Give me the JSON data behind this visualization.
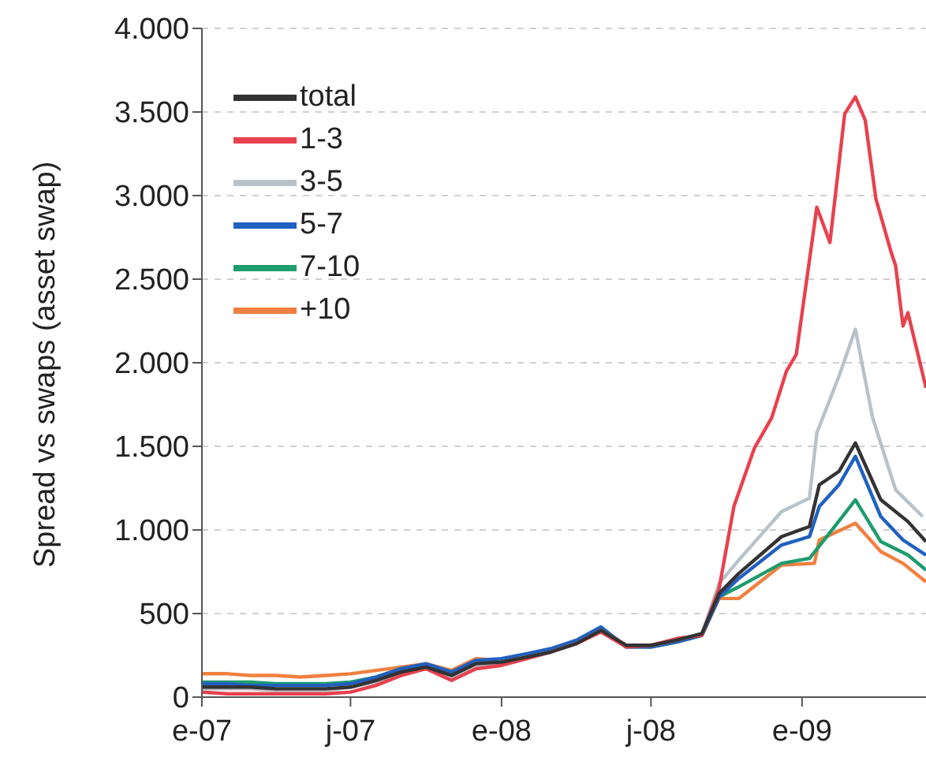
{
  "chart_data": {
    "type": "line",
    "ylabel": "Spread vs swaps (asset swap)",
    "xlim": [
      "2007-01-01",
      "2009-06-01"
    ],
    "xticks": [
      {
        "value": "2007-01-01",
        "label": "e-07"
      },
      {
        "value": "2007-07-01",
        "label": "j-07"
      },
      {
        "value": "2008-01-01",
        "label": "e-08"
      },
      {
        "value": "2008-07-01",
        "label": "j-08"
      },
      {
        "value": "2009-01-01",
        "label": "e-09"
      }
    ],
    "ylim": [
      0,
      4000
    ],
    "yticks": [
      {
        "value": 0,
        "label": "0"
      },
      {
        "value": 500,
        "label": "500"
      },
      {
        "value": 1000,
        "label": "1.000"
      },
      {
        "value": 1500,
        "label": "1.500"
      },
      {
        "value": 2000,
        "label": "2.000"
      },
      {
        "value": 2500,
        "label": "2.500"
      },
      {
        "value": 3000,
        "label": "3.000"
      },
      {
        "value": 3500,
        "label": "3.500"
      },
      {
        "value": 4000,
        "label": "4.000"
      }
    ],
    "grid": "y",
    "legend": "top left",
    "marker": "none",
    "line_style": "solid",
    "series": [
      {
        "name": "+10",
        "color": "#f08040",
        "x": [
          "2007-01-01",
          "2007-02-01",
          "2007-03-01",
          "2007-04-01",
          "2007-05-01",
          "2007-06-01",
          "2007-07-01",
          "2007-08-01",
          "2007-09-01",
          "2007-10-01",
          "2007-11-01",
          "2007-12-01",
          "2008-01-01",
          "2008-02-01",
          "2008-03-01",
          "2008-04-01",
          "2008-05-01",
          "2008-06-01",
          "2008-07-01",
          "2008-08-01",
          "2008-09-01",
          "2008-09-22",
          "2008-10-16",
          "2008-12-07",
          "2009-01-16",
          "2009-01-22",
          "2009-03-07",
          "2009-04-07",
          "2009-05-04",
          "2009-06-01"
        ],
        "values": [
          140,
          140,
          130,
          130,
          120,
          130,
          140,
          160,
          180,
          200,
          160,
          230,
          220,
          250,
          280,
          330,
          410,
          310,
          300,
          330,
          370,
          590,
          590,
          790,
          800,
          940,
          1040,
          870,
          800,
          690
        ]
      },
      {
        "name": "7-10",
        "color": "#1e9c6e",
        "x": [
          "2007-01-01",
          "2007-02-01",
          "2007-03-01",
          "2007-04-01",
          "2007-05-01",
          "2007-06-01",
          "2007-07-01",
          "2007-08-01",
          "2007-09-01",
          "2007-10-01",
          "2007-11-01",
          "2007-12-01",
          "2008-01-01",
          "2008-02-01",
          "2008-03-01",
          "2008-04-01",
          "2008-05-01",
          "2008-06-01",
          "2008-07-01",
          "2008-08-01",
          "2008-09-01",
          "2008-09-22",
          "2008-10-16",
          "2008-12-07",
          "2009-01-10",
          "2009-01-28",
          "2009-03-07",
          "2009-04-07",
          "2009-05-10",
          "2009-06-01"
        ],
        "values": [
          90,
          90,
          90,
          80,
          80,
          80,
          90,
          120,
          170,
          190,
          150,
          210,
          210,
          250,
          280,
          320,
          400,
          300,
          300,
          330,
          370,
          600,
          660,
          800,
          830,
          940,
          1180,
          930,
          850,
          760
        ]
      },
      {
        "name": "5-7",
        "color": "#2060c0",
        "x": [
          "2007-01-01",
          "2007-02-01",
          "2007-03-01",
          "2007-04-01",
          "2007-05-01",
          "2007-06-01",
          "2007-07-01",
          "2007-08-01",
          "2007-09-01",
          "2007-10-01",
          "2007-11-01",
          "2007-12-01",
          "2008-01-01",
          "2008-02-01",
          "2008-03-01",
          "2008-04-01",
          "2008-05-01",
          "2008-06-01",
          "2008-07-01",
          "2008-08-01",
          "2008-09-01",
          "2008-09-22",
          "2008-10-16",
          "2008-12-07",
          "2009-01-10",
          "2009-01-22",
          "2009-02-15",
          "2009-03-07",
          "2009-04-07",
          "2009-05-04",
          "2009-06-01"
        ],
        "values": [
          80,
          80,
          70,
          70,
          70,
          70,
          80,
          120,
          170,
          200,
          150,
          220,
          230,
          260,
          290,
          340,
          420,
          300,
          300,
          330,
          370,
          600,
          710,
          910,
          960,
          1140,
          1270,
          1440,
          1080,
          940,
          850
        ]
      },
      {
        "name": "3-5",
        "color": "#b8c2c8",
        "x": [
          "2007-01-01",
          "2007-02-01",
          "2007-03-01",
          "2007-04-01",
          "2007-05-01",
          "2007-06-01",
          "2007-07-01",
          "2007-08-01",
          "2007-09-01",
          "2007-10-01",
          "2007-11-01",
          "2007-12-01",
          "2008-01-01",
          "2008-02-01",
          "2008-03-01",
          "2008-04-01",
          "2008-05-01",
          "2008-06-01",
          "2008-07-01",
          "2008-08-01",
          "2008-09-01",
          "2008-09-22",
          "2008-10-16",
          "2008-12-07",
          "2009-01-10",
          "2009-01-19",
          "2009-02-15",
          "2009-03-07",
          "2009-03-28",
          "2009-04-25",
          "2009-05-28"
        ],
        "values": [
          50,
          50,
          50,
          40,
          40,
          40,
          60,
          90,
          130,
          170,
          120,
          190,
          210,
          240,
          270,
          320,
          400,
          310,
          310,
          340,
          380,
          680,
          820,
          1110,
          1190,
          1580,
          1920,
          2200,
          1670,
          1240,
          1080
        ]
      },
      {
        "name": "1-3",
        "color": "#e8414f",
        "x": [
          "2007-01-01",
          "2007-02-01",
          "2007-03-01",
          "2007-04-01",
          "2007-05-01",
          "2007-06-01",
          "2007-07-01",
          "2007-08-01",
          "2007-09-01",
          "2007-10-01",
          "2007-11-01",
          "2007-12-01",
          "2008-01-01",
          "2008-02-01",
          "2008-03-01",
          "2008-04-01",
          "2008-05-01",
          "2008-06-01",
          "2008-07-01",
          "2008-08-01",
          "2008-09-01",
          "2008-09-22",
          "2008-10-10",
          "2008-11-04",
          "2008-11-25",
          "2008-12-13",
          "2008-12-25",
          "2009-01-19",
          "2009-02-04",
          "2009-02-22",
          "2009-03-07",
          "2009-03-19",
          "2009-04-01",
          "2009-04-19",
          "2009-04-25",
          "2009-05-04",
          "2009-05-10",
          "2009-06-01"
        ],
        "values": [
          30,
          20,
          20,
          20,
          20,
          20,
          30,
          70,
          130,
          170,
          100,
          170,
          190,
          230,
          270,
          320,
          390,
          300,
          310,
          350,
          370,
          650,
          1140,
          1490,
          1670,
          1950,
          2050,
          2930,
          2720,
          3490,
          3590,
          3450,
          2980,
          2670,
          2580,
          2220,
          2300,
          1850
        ]
      },
      {
        "name": "total",
        "color": "#333333",
        "x": [
          "2007-01-01",
          "2007-02-01",
          "2007-03-01",
          "2007-04-01",
          "2007-05-01",
          "2007-06-01",
          "2007-07-01",
          "2007-08-01",
          "2007-09-01",
          "2007-10-01",
          "2007-11-01",
          "2007-12-01",
          "2008-01-01",
          "2008-02-01",
          "2008-03-01",
          "2008-04-01",
          "2008-05-01",
          "2008-06-01",
          "2008-07-01",
          "2008-08-01",
          "2008-09-01",
          "2008-09-22",
          "2008-10-16",
          "2008-12-07",
          "2009-01-10",
          "2009-01-22",
          "2009-02-15",
          "2009-03-07",
          "2009-04-07",
          "2009-05-10",
          "2009-06-01"
        ],
        "values": [
          60,
          60,
          60,
          50,
          50,
          50,
          60,
          100,
          150,
          180,
          130,
          200,
          210,
          240,
          270,
          320,
          400,
          310,
          310,
          340,
          380,
          620,
          740,
          960,
          1020,
          1270,
          1350,
          1520,
          1180,
          1050,
          930
        ]
      }
    ]
  }
}
